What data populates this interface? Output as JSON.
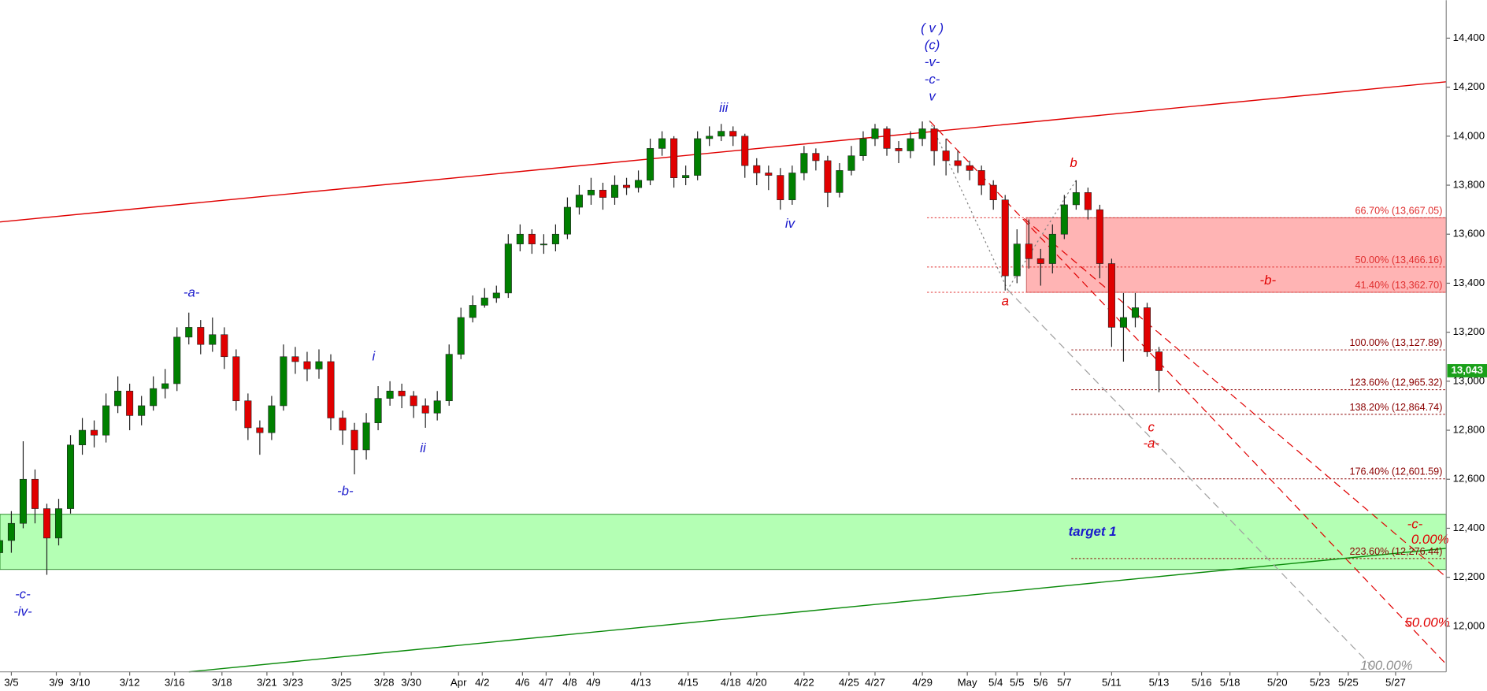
{
  "chart_data": {
    "type": "candlestick",
    "up_color": "#008000",
    "down_color": "#e00000",
    "xlim": [
      -0.48,
      60.64
    ],
    "ylim": [
      11814,
      14555
    ],
    "yticks": [
      {
        "value": 12000,
        "label": "12,000"
      },
      {
        "value": 12200,
        "label": "12,200"
      },
      {
        "value": 12400,
        "label": "12,400"
      },
      {
        "value": 12600,
        "label": "12,600"
      },
      {
        "value": 12800,
        "label": "12,800"
      },
      {
        "value": 13000,
        "label": "13,000"
      },
      {
        "value": 13200,
        "label": "13,200"
      },
      {
        "value": 13400,
        "label": "13,400"
      },
      {
        "value": 13600,
        "label": "13,600"
      },
      {
        "value": 13800,
        "label": "13,800"
      },
      {
        "value": 14000,
        "label": "14,000"
      },
      {
        "value": 14200,
        "label": "14,200"
      },
      {
        "value": 14400,
        "label": "14,400"
      }
    ],
    "xticks": [
      {
        "value": 0,
        "label": "3/5"
      },
      {
        "value": 1.9,
        "label": "3/9"
      },
      {
        "value": 2.9,
        "label": "3/10"
      },
      {
        "value": 5,
        "label": "3/12"
      },
      {
        "value": 6.9,
        "label": "3/16"
      },
      {
        "value": 8.9,
        "label": "3/18"
      },
      {
        "value": 10.8,
        "label": "3/21"
      },
      {
        "value": 11.9,
        "label": "3/23"
      },
      {
        "value": 13.95,
        "label": "3/25"
      },
      {
        "value": 15.75,
        "label": "3/28"
      },
      {
        "value": 16.9,
        "label": "3/30"
      },
      {
        "value": 18.9,
        "label": "Apr"
      },
      {
        "value": 19.9,
        "label": "4/2"
      },
      {
        "value": 21.6,
        "label": "4/6"
      },
      {
        "value": 22.6,
        "label": "4/7"
      },
      {
        "value": 23.6,
        "label": "4/8"
      },
      {
        "value": 24.6,
        "label": "4/9"
      },
      {
        "value": 26.6,
        "label": "4/13"
      },
      {
        "value": 28.6,
        "label": "4/15"
      },
      {
        "value": 30.4,
        "label": "4/18"
      },
      {
        "value": 31.5,
        "label": "4/20"
      },
      {
        "value": 33.5,
        "label": "4/22"
      },
      {
        "value": 35.4,
        "label": "4/25"
      },
      {
        "value": 36.5,
        "label": "4/27"
      },
      {
        "value": 38.5,
        "label": "4/29"
      },
      {
        "value": 40.4,
        "label": "May"
      },
      {
        "value": 41.6,
        "label": "5/4"
      },
      {
        "value": 42.5,
        "label": "5/5"
      },
      {
        "value": 43.5,
        "label": "5/6"
      },
      {
        "value": 44.5,
        "label": "5/7"
      },
      {
        "value": 46.5,
        "label": "5/11"
      },
      {
        "value": 48.5,
        "label": "5/13"
      },
      {
        "value": 50.3,
        "label": "5/16"
      },
      {
        "value": 51.5,
        "label": "5/18"
      },
      {
        "value": 53.5,
        "label": "5/20"
      },
      {
        "value": 55.3,
        "label": "5/23"
      },
      {
        "value": 56.5,
        "label": "5/25"
      },
      {
        "value": 58.5,
        "label": "5/27"
      }
    ],
    "x": [
      -0.5,
      0,
      0.5,
      1,
      1.5,
      2,
      2.5,
      3,
      3.5,
      4,
      4.5,
      5,
      5.5,
      6,
      6.5,
      7,
      7.5,
      8,
      8.5,
      9,
      9.5,
      10,
      10.5,
      11,
      11.5,
      12,
      12.5,
      13,
      13.5,
      14,
      14.5,
      15,
      15.5,
      16,
      16.5,
      17,
      17.5,
      18,
      18.5,
      19,
      19.5,
      20,
      20.5,
      21,
      21.5,
      22,
      22.5,
      23,
      23.5,
      24,
      24.5,
      25,
      25.5,
      26,
      26.5,
      27,
      27.5,
      28,
      28.5,
      29,
      29.5,
      30,
      30.5,
      31,
      31.5,
      32,
      32.5,
      33,
      33.5,
      34,
      34.5,
      35,
      35.5,
      36,
      36.5,
      37,
      37.5,
      38,
      38.5,
      39,
      39.5,
      40,
      40.5,
      41,
      41.5,
      42,
      42.5,
      43,
      43.5,
      44,
      44.5,
      45,
      45.5,
      46,
      46.5,
      47,
      47.5,
      48,
      48.5
    ],
    "open": [
      12300,
      12350,
      12420,
      12600,
      12480,
      12360,
      12480,
      12740,
      12800,
      12780,
      12900,
      12960,
      12860,
      12900,
      12970,
      12990,
      13180,
      13220,
      13150,
      13190,
      13100,
      12920,
      12810,
      12790,
      12900,
      13100,
      13080,
      13050,
      13080,
      12850,
      12800,
      12720,
      12830,
      12930,
      12960,
      12940,
      12900,
      12870,
      12920,
      13110,
      13260,
      13310,
      13340,
      13360,
      13560,
      13600,
      13560,
      13560,
      13600,
      13710,
      13760,
      13780,
      13750,
      13800,
      13790,
      13820,
      13950,
      13990,
      13830,
      13840,
      13990,
      14000,
      14020,
      14000,
      13880,
      13850,
      13840,
      13740,
      13850,
      13930,
      13900,
      13770,
      13860,
      13920,
      13990,
      14030,
      13950,
      13940,
      13990,
      14030,
      13940,
      13900,
      13880,
      13860,
      13800,
      13740,
      13430,
      13560,
      13500,
      13480,
      13600,
      13720,
      13770,
      13700,
      13480,
      13220,
      13260,
      13300,
      13120
    ],
    "high": [
      12420,
      12470,
      12755,
      12640,
      12500,
      12520,
      12780,
      12850,
      12840,
      12950,
      13020,
      12990,
      12940,
      13020,
      13050,
      13220,
      13280,
      13250,
      13260,
      13220,
      13130,
      12950,
      12840,
      12940,
      13150,
      13140,
      13120,
      13130,
      13110,
      12880,
      12830,
      12870,
      12980,
      13000,
      12990,
      12960,
      12930,
      12960,
      13150,
      13300,
      13350,
      13380,
      13390,
      13600,
      13640,
      13620,
      13600,
      13640,
      13750,
      13800,
      13830,
      13810,
      13840,
      13830,
      13860,
      13990,
      14020,
      14000,
      13880,
      14020,
      14040,
      14050,
      14040,
      14010,
      13910,
      13880,
      13870,
      13880,
      13960,
      13950,
      13920,
      13890,
      13960,
      14020,
      14050,
      14040,
      13980,
      14020,
      14060,
      14040,
      13990,
      13940,
      13900,
      13880,
      13820,
      13760,
      13620,
      13660,
      13540,
      13640,
      13760,
      13820,
      13790,
      13720,
      13500,
      13360,
      13360,
      13320,
      13140
    ],
    "low": [
      12240,
      12300,
      12400,
      12420,
      12210,
      12330,
      12460,
      12700,
      12730,
      12750,
      12870,
      12800,
      12820,
      12880,
      12930,
      12960,
      13150,
      13110,
      13120,
      13050,
      12880,
      12760,
      12700,
      12760,
      12880,
      13030,
      13000,
      13010,
      12800,
      12740,
      12620,
      12680,
      12800,
      12900,
      12890,
      12850,
      12810,
      12840,
      12900,
      13090,
      13240,
      13300,
      13320,
      13340,
      13530,
      13520,
      13520,
      13530,
      13580,
      13680,
      13720,
      13700,
      13720,
      13760,
      13770,
      13800,
      13920,
      13790,
      13800,
      13820,
      13960,
      13980,
      13960,
      13830,
      13800,
      13780,
      13700,
      13720,
      13820,
      13860,
      13710,
      13750,
      13840,
      13900,
      13960,
      13920,
      13890,
      13910,
      13960,
      13880,
      13840,
      13850,
      13820,
      13760,
      13700,
      13370,
      13400,
      13460,
      13390,
      13440,
      13580,
      13700,
      13660,
      13420,
      13140,
      13080,
      13220,
      13100,
      12955
    ],
    "close": [
      12350,
      12420,
      12600,
      12480,
      12360,
      12480,
      12740,
      12800,
      12780,
      12900,
      12960,
      12860,
      12900,
      12970,
      12990,
      13180,
      13220,
      13150,
      13190,
      13100,
      12920,
      12810,
      12790,
      12900,
      13100,
      13080,
      13050,
      13080,
      12850,
      12800,
      12720,
      12830,
      12930,
      12960,
      12940,
      12900,
      12870,
      12920,
      13110,
      13260,
      13310,
      13340,
      13360,
      13560,
      13600,
      13560,
      13560,
      13600,
      13710,
      13760,
      13780,
      13750,
      13800,
      13790,
      13820,
      13950,
      13990,
      13830,
      13840,
      13990,
      14000,
      14020,
      14000,
      13880,
      13850,
      13840,
      13740,
      13850,
      13930,
      13900,
      13770,
      13860,
      13920,
      13990,
      14030,
      13950,
      13940,
      13990,
      14030,
      13940,
      13900,
      13880,
      13860,
      13800,
      13740,
      13430,
      13560,
      13500,
      13480,
      13600,
      13720,
      13770,
      13700,
      13480,
      13220,
      13260,
      13300,
      13120,
      13043
    ],
    "last_price": {
      "value": 13043,
      "label": "13,043",
      "color": "#1aa01a"
    },
    "zones": [
      {
        "from": 42.9,
        "to": 60.64,
        "low": 13362.7,
        "high": 13667.05,
        "fill": "#ffb4b4",
        "stroke": "#c86464"
      },
      {
        "from": -0.48,
        "to": 60.64,
        "low": 12232,
        "high": 12457,
        "fill": "#b4ffb4",
        "stroke": "#2a8a2a"
      }
    ],
    "fib_levels": [
      {
        "value": 13667.05,
        "label": "66.70% (13,667.05)",
        "from": 38.7,
        "color": "#e03030"
      },
      {
        "value": 13466.16,
        "label": "50.00% (13,466.16)",
        "from": 38.7,
        "color": "#e03030"
      },
      {
        "value": 13362.7,
        "label": "41.40% (13,362.70)",
        "from": 38.7,
        "color": "#e03030"
      },
      {
        "value": 13127.89,
        "label": "100.00% (13,127.89)",
        "from": 44.8,
        "color": "#8b0000"
      },
      {
        "value": 12965.32,
        "label": "123.60% (12,965.32)",
        "from": 44.8,
        "color": "#8b0000"
      },
      {
        "value": 12864.74,
        "label": "138.20% (12,864.74)",
        "from": 44.8,
        "color": "#8b0000"
      },
      {
        "value": 12601.59,
        "label": "176.40% (12,601.59)",
        "from": 44.8,
        "color": "#8b0000"
      },
      {
        "value": 12276.44,
        "label": "223.60% (12,276.44)",
        "from": 44.8,
        "color": "#8b0000"
      }
    ],
    "trendlines": [
      {
        "points": [
          [
            -0.48,
            13650
          ],
          [
            60.64,
            14222
          ]
        ],
        "color": "#e00000",
        "style": "solid"
      },
      {
        "points": [
          [
            7.5,
            11814
          ],
          [
            60.64,
            12318
          ]
        ],
        "color": "#0a8a0a",
        "style": "solid"
      },
      {
        "points": [
          [
            38.8,
            14063
          ],
          [
            60.64,
            11845
          ]
        ],
        "color": "#e00000",
        "style": "dashed"
      },
      {
        "points": [
          [
            42.8,
            13664
          ],
          [
            60.64,
            12201
          ]
        ],
        "color": "#e00000",
        "style": "dashed"
      },
      {
        "points": [
          [
            42.1,
            13374
          ],
          [
            57.6,
            11826
          ]
        ],
        "color": "#a0a0a0",
        "style": "dashed"
      },
      {
        "points": [
          [
            38.8,
            14063
          ],
          [
            42.1,
            13374
          ],
          [
            45,
            13820
          ]
        ],
        "color": "#808080",
        "style": "dotted"
      }
    ],
    "annotations": [
      {
        "text": "( v )",
        "color": "#1a1acc"
      },
      {
        "text": "(c)",
        "color": "#1a1acc"
      },
      {
        "text": "-v-",
        "color": "#1a1acc"
      },
      {
        "text": "-c-",
        "color": "#1a1acc"
      },
      {
        "text": "v",
        "color": "#1a1acc"
      },
      {
        "text": "iii",
        "color": "#1a1acc"
      },
      {
        "text": "iv",
        "color": "#1a1acc"
      },
      {
        "text": "-a-",
        "color": "#1a1acc"
      },
      {
        "text": "i",
        "color": "#1a1acc"
      },
      {
        "text": "ii",
        "color": "#1a1acc"
      },
      {
        "text": "-b-",
        "color": "#1a1acc"
      },
      {
        "text": "-c-",
        "color": "#1a1acc"
      },
      {
        "text": "-iv-",
        "color": "#1a1acc"
      },
      {
        "text": "b",
        "color": "#e00000"
      },
      {
        "text": "a",
        "color": "#e00000"
      },
      {
        "text": "c",
        "color": "#e00000"
      },
      {
        "text": "-a-",
        "color": "#e00000"
      },
      {
        "text": "-b-",
        "color": "#e00000"
      },
      {
        "text": "-c-",
        "color": "#e00000"
      },
      {
        "text": "target 1",
        "color": "#1a1acc"
      },
      {
        "text": "0.00%",
        "color": "#e00000"
      },
      {
        "text": "50.00%",
        "color": "#e00000"
      },
      {
        "text": "100.00%",
        "color": "#909090"
      }
    ]
  }
}
